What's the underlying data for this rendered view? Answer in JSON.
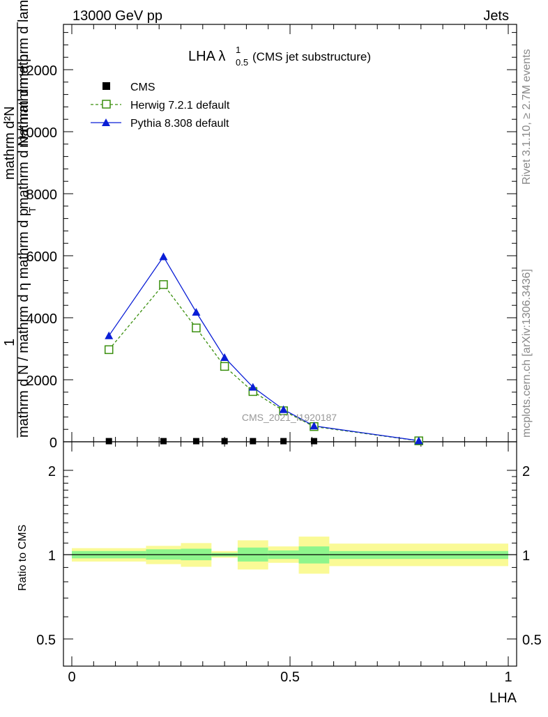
{
  "header": {
    "left": "13000 GeV pp",
    "right": "Jets",
    "side_top": "Rivet 3.1.10, ≥ 2.7M events",
    "side_bottom": "mcplots.cern.ch [arXiv:1306.3436]",
    "watermark": "CMS_2021_I1920187"
  },
  "plot_title": {
    "main": "LHA λ",
    "sup": "1",
    "sub": "0.5",
    "tail": " (CMS jet substructure)"
  },
  "axes": {
    "ylabel_numerator": "1",
    "ylabel_line1": "mathrm d N / mathrm d p",
    "ylabel_line1_sub": "T",
    "ylabel_line2": " mathrm d mathrm d lambda",
    "ylabel_line2b": "mathrm d²N",
    "ylabel_frag": "mathrm d N / mathrm d η mathrm d p",
    "xlabel": "LHA",
    "ratio_ylabel": "Ratio to CMS"
  },
  "colors": {
    "data": "#000000",
    "herwig": "#3a8f0e",
    "pythia": "#0a1ed6",
    "band_inner": "#8ef58c",
    "band_outer": "#fafa96"
  },
  "chart_data": [
    {
      "type": "line",
      "panel": "main",
      "x": [
        0.085,
        0.21,
        0.285,
        0.35,
        0.415,
        0.485,
        0.555,
        0.795
      ],
      "ylim": [
        0,
        13500
      ],
      "xlim": [
        0,
        1
      ],
      "yticks": [
        0,
        2000,
        4000,
        6000,
        8000,
        10000,
        12000
      ],
      "ytick_labels": [
        "0",
        "2000",
        "4000",
        "6000",
        "8000",
        "10000",
        "12000"
      ],
      "series": [
        {
          "name": "CMS",
          "values": [
            20,
            20,
            20,
            20,
            20,
            20,
            20,
            null
          ],
          "marker": "square-filled"
        },
        {
          "name": "Herwig 7.2.1 default",
          "values": [
            2970,
            5070,
            3670,
            2430,
            1620,
            1000,
            490,
            30
          ],
          "marker": "square-open"
        },
        {
          "name": "Pythia 8.308 default",
          "values": [
            3420,
            5970,
            4180,
            2720,
            1760,
            1040,
            510,
            35
          ],
          "marker": "triangle"
        }
      ]
    },
    {
      "type": "area",
      "panel": "ratio",
      "ylim": [
        0.4,
        2.35
      ],
      "xlim": [
        0,
        1
      ],
      "yticks": [
        0.5,
        1,
        2
      ],
      "ytick_labels": [
        "0.5",
        "1",
        "2"
      ],
      "xticks": [
        0,
        0.5,
        1
      ],
      "xtick_labels": [
        "0",
        "0.5",
        "1"
      ],
      "bins": [
        {
          "lo": 0.0,
          "hi": 0.17,
          "inner": [
            0.97,
            1.03
          ],
          "outer": [
            0.945,
            1.055
          ]
        },
        {
          "lo": 0.17,
          "hi": 0.25,
          "inner": [
            0.96,
            1.045
          ],
          "outer": [
            0.925,
            1.075
          ]
        },
        {
          "lo": 0.25,
          "hi": 0.32,
          "inner": [
            0.955,
            1.05
          ],
          "outer": [
            0.905,
            1.1
          ]
        },
        {
          "lo": 0.32,
          "hi": 0.38,
          "inner": [
            0.985,
            1.015
          ],
          "outer": [
            0.975,
            1.03
          ]
        },
        {
          "lo": 0.38,
          "hi": 0.45,
          "inner": [
            0.945,
            1.06
          ],
          "outer": [
            0.885,
            1.125
          ]
        },
        {
          "lo": 0.45,
          "hi": 0.52,
          "inner": [
            0.965,
            1.035
          ],
          "outer": [
            0.935,
            1.07
          ]
        },
        {
          "lo": 0.52,
          "hi": 0.59,
          "inner": [
            0.93,
            1.07
          ],
          "outer": [
            0.855,
            1.16
          ]
        },
        {
          "lo": 0.59,
          "hi": 1.0,
          "inner": [
            0.965,
            1.03
          ],
          "outer": [
            0.91,
            1.095
          ]
        }
      ]
    }
  ]
}
